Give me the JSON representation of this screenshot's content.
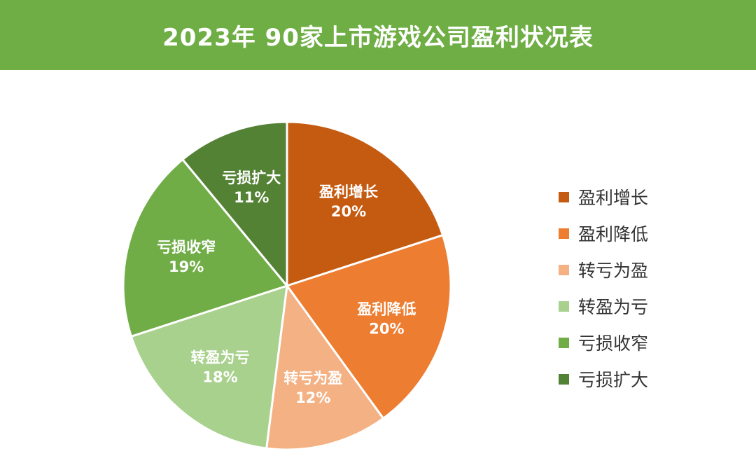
{
  "header": {
    "title": "2023年 90家上市游戏公司盈利状况表"
  },
  "colors": {
    "header_bg": "#6fae45",
    "slice_border": "#ffffff"
  },
  "chart_data": {
    "type": "pie",
    "title": "2023年 90家上市游戏公司盈利状况表",
    "legend_position": "right",
    "start": "top, clockwise",
    "slices": [
      {
        "label": "盈利增长",
        "value": 20,
        "display": "20%",
        "color": "#c55a11"
      },
      {
        "label": "盈利降低",
        "value": 20,
        "display": "20%",
        "color": "#ed7d31"
      },
      {
        "label": "转亏为盈",
        "value": 12,
        "display": "12%",
        "color": "#f4b183"
      },
      {
        "label": "转盈为亏",
        "value": 18,
        "display": "18%",
        "color": "#a9d18e"
      },
      {
        "label": "亏损收窄",
        "value": 19,
        "display": "19%",
        "color": "#70ad47"
      },
      {
        "label": "亏损扩大",
        "value": 11,
        "display": "11%",
        "color": "#548235"
      }
    ]
  }
}
